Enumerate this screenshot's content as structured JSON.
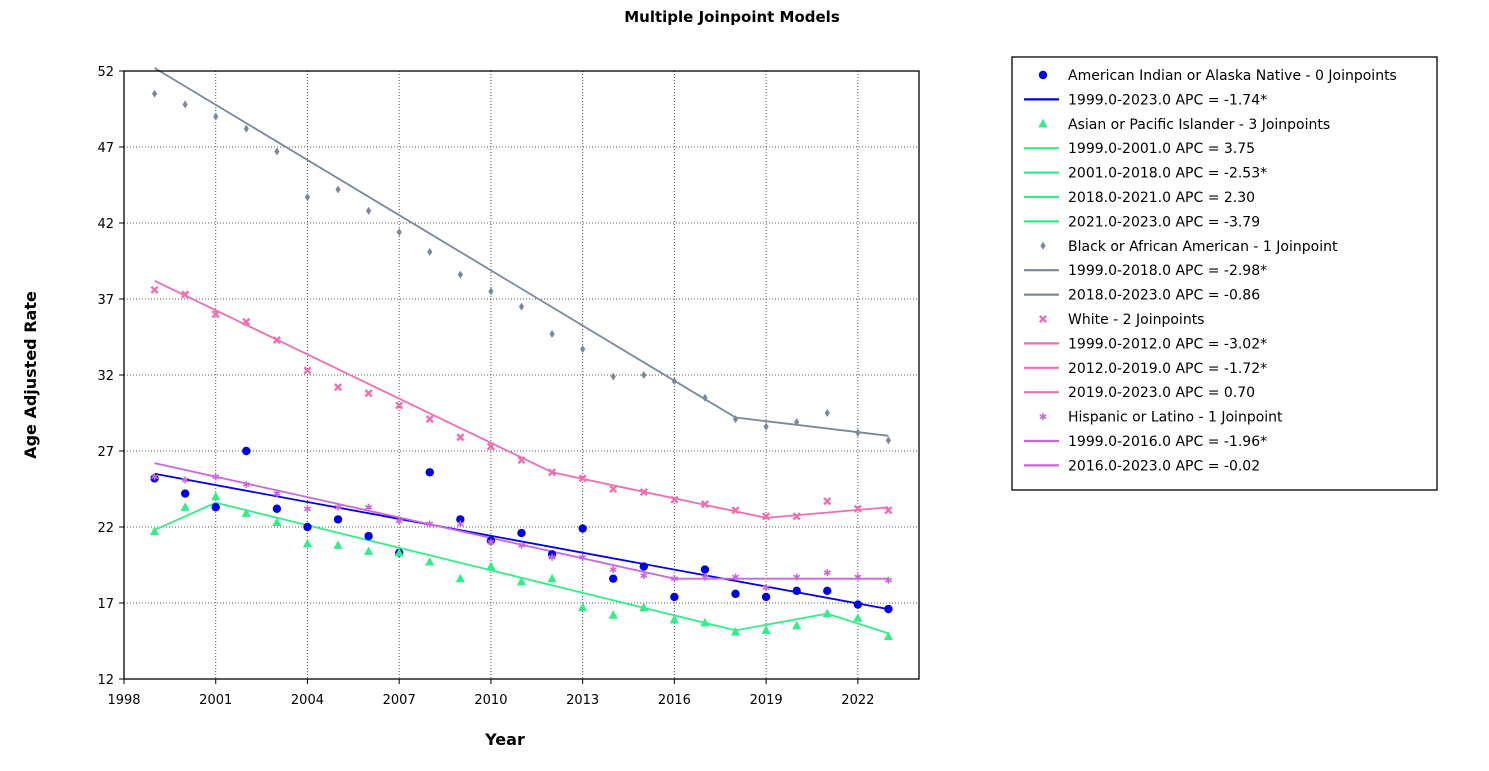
{
  "chart_data": {
    "type": "line",
    "title": "Multiple Joinpoint Models",
    "xlabel": "Year",
    "ylabel": "Age Adjusted Rate",
    "xlim": [
      1998,
      2024
    ],
    "ylim": [
      12,
      52
    ],
    "x_ticks": [
      1998,
      2001,
      2004,
      2007,
      2010,
      2013,
      2016,
      2019,
      2022
    ],
    "y_ticks": [
      12,
      17,
      22,
      27,
      32,
      37,
      42,
      47,
      52
    ],
    "grid": true,
    "legend_position": "right",
    "x": [
      1999,
      2000,
      2001,
      2002,
      2003,
      2004,
      2005,
      2006,
      2007,
      2008,
      2009,
      2010,
      2011,
      2012,
      2013,
      2014,
      2015,
      2016,
      2017,
      2018,
      2019,
      2020,
      2021,
      2022,
      2023
    ],
    "series": [
      {
        "name": "American Indian or Alaska Native - 0 Joinpoints",
        "color": "#0000e6",
        "marker": "circle",
        "values": [
          25.2,
          24.2,
          23.3,
          27.0,
          23.2,
          22.0,
          22.5,
          21.4,
          20.3,
          25.6,
          22.5,
          21.1,
          21.6,
          20.2,
          21.9,
          18.6,
          19.4,
          17.4,
          19.2,
          17.6,
          17.4,
          17.8,
          17.8,
          16.9,
          16.6
        ],
        "fit": [
          [
            1999,
            25.5
          ],
          [
            2023,
            16.6
          ]
        ],
        "segments": [
          "1999.0-2023.0 APC  = -1.74*"
        ]
      },
      {
        "name": "Asian or Pacific Islander - 3 Joinpoints",
        "color": "#33ee88",
        "marker": "triangle",
        "values": [
          21.7,
          23.3,
          24.0,
          22.9,
          22.3,
          20.9,
          20.8,
          20.4,
          20.3,
          19.7,
          18.6,
          19.4,
          18.4,
          18.6,
          16.7,
          16.2,
          16.7,
          15.9,
          15.7,
          15.1,
          15.2,
          15.5,
          16.3,
          16.0,
          14.8
        ],
        "fit": [
          [
            1999,
            21.8
          ],
          [
            2001,
            23.6
          ],
          [
            2018,
            15.2
          ],
          [
            2021,
            16.3
          ],
          [
            2023,
            15.0
          ]
        ],
        "segments": [
          "1999.0-2001.0 APC  =  3.75",
          "2001.0-2018.0 APC  = -2.53*",
          "2018.0-2021.0 APC  =  2.30",
          "2021.0-2023.0 APC  = -3.79"
        ]
      },
      {
        "name": "Black or African American - 1 Joinpoint",
        "color": "#7a8899",
        "marker": "diamond",
        "values": [
          50.5,
          49.8,
          49.0,
          48.2,
          46.7,
          43.7,
          44.2,
          42.8,
          41.4,
          40.1,
          38.6,
          37.5,
          36.5,
          34.7,
          33.7,
          31.9,
          32.0,
          31.6,
          30.5,
          29.1,
          28.6,
          28.9,
          29.5,
          28.2,
          27.7
        ],
        "fit": [
          [
            1999,
            52.2
          ],
          [
            2018,
            29.2
          ],
          [
            2023,
            28.0
          ]
        ],
        "segments": [
          "1999.0-2018.0 APC  = -2.98*",
          "2018.0-2023.0 APC  = -0.86"
        ]
      },
      {
        "name": "White - 2 Joinpoints",
        "color": "#ee6fb0",
        "marker": "x",
        "values": [
          37.6,
          37.3,
          36.0,
          35.5,
          34.3,
          32.3,
          31.2,
          30.8,
          30.0,
          29.1,
          27.9,
          27.3,
          26.4,
          25.6,
          25.2,
          24.5,
          24.3,
          23.8,
          23.5,
          23.1,
          22.7,
          22.7,
          23.7,
          23.2,
          23.1
        ],
        "fit": [
          [
            1999,
            38.2
          ],
          [
            2012,
            25.6
          ],
          [
            2019,
            22.6
          ],
          [
            2023,
            23.3
          ]
        ],
        "segments": [
          "1999.0-2012.0 APC  = -3.02*",
          "2012.0-2019.0 APC  = -1.72*",
          "2019.0-2023.0 APC  =  0.70"
        ]
      },
      {
        "name": "Hispanic or Latino - 1 Joinpoint",
        "color": "#cc66dd",
        "marker": "star",
        "values": [
          25.3,
          25.1,
          25.3,
          24.8,
          24.2,
          23.2,
          23.3,
          23.3,
          22.4,
          22.2,
          22.2,
          21.0,
          20.8,
          20.0,
          20.0,
          19.2,
          18.8,
          18.6,
          18.7,
          18.7,
          18.0,
          18.7,
          19.0,
          18.7,
          18.5
        ],
        "fit": [
          [
            1999,
            26.2
          ],
          [
            2016,
            18.6
          ],
          [
            2023,
            18.6
          ]
        ],
        "segments": [
          "1999.0-2016.0 APC  = -1.96*",
          "2016.0-2023.0 APC  = -0.02"
        ]
      }
    ]
  }
}
